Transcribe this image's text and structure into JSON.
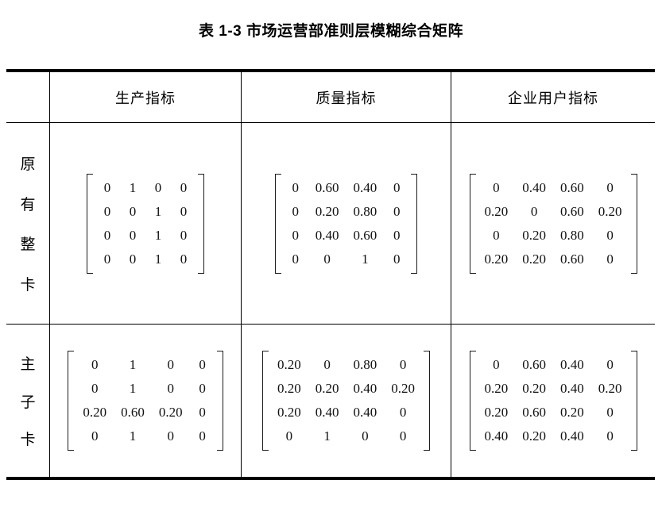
{
  "title": "表 1-3 市场运营部准则层模糊综合矩阵",
  "table": {
    "column_headers": [
      "生产指标",
      "质量指标",
      "企业用户指标"
    ],
    "rows": [
      {
        "label": "原有整卡",
        "label_chars": [
          "原",
          "有",
          "整",
          "卡"
        ],
        "matrices": [
          [
            [
              "0",
              "1",
              "0",
              "0"
            ],
            [
              "0",
              "0",
              "1",
              "0"
            ],
            [
              "0",
              "0",
              "1",
              "0"
            ],
            [
              "0",
              "0",
              "1",
              "0"
            ]
          ],
          [
            [
              "0",
              "0.60",
              "0.40",
              "0"
            ],
            [
              "0",
              "0.20",
              "0.80",
              "0"
            ],
            [
              "0",
              "0.40",
              "0.60",
              "0"
            ],
            [
              "0",
              "0",
              "1",
              "0"
            ]
          ],
          [
            [
              "0",
              "0.40",
              "0.60",
              "0"
            ],
            [
              "0.20",
              "0",
              "0.60",
              "0.20"
            ],
            [
              "0",
              "0.20",
              "0.80",
              "0"
            ],
            [
              "0.20",
              "0.20",
              "0.60",
              "0"
            ]
          ]
        ]
      },
      {
        "label": "主子卡",
        "label_chars": [
          "主",
          "子",
          "卡"
        ],
        "matrices": [
          [
            [
              "0",
              "1",
              "0",
              "0"
            ],
            [
              "0",
              "1",
              "0",
              "0"
            ],
            [
              "0.20",
              "0.60",
              "0.20",
              "0"
            ],
            [
              "0",
              "1",
              "0",
              "0"
            ]
          ],
          [
            [
              "0.20",
              "0",
              "0.80",
              "0"
            ],
            [
              "0.20",
              "0.20",
              "0.40",
              "0.20"
            ],
            [
              "0.20",
              "0.40",
              "0.40",
              "0"
            ],
            [
              "0",
              "1",
              "0",
              "0"
            ]
          ],
          [
            [
              "0",
              "0.60",
              "0.40",
              "0"
            ],
            [
              "0.20",
              "0.20",
              "0.40",
              "0.20"
            ],
            [
              "0.20",
              "0.60",
              "0.20",
              "0"
            ],
            [
              "0.40",
              "0.20",
              "0.40",
              "0"
            ]
          ]
        ]
      }
    ]
  },
  "colors": {
    "text": "#000000",
    "background": "#ffffff",
    "border": "#000000"
  }
}
